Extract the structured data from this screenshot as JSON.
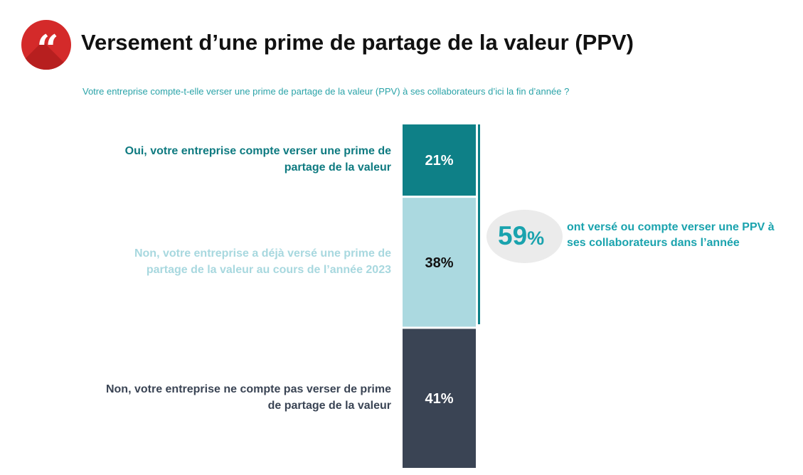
{
  "header": {
    "title": "Versement d’une prime de partage de la valeur (PPV)",
    "subtitle": "Votre entreprise compte-t-elle verser une prime de partage de la valeur (PPV) à ses collaborateurs d’ici la fin d’année ?",
    "logo_icon": "quote-icon",
    "logo_color": "#d42a2a"
  },
  "chart_data": {
    "type": "bar",
    "orientation": "stacked-vertical",
    "title": "Versement d’une prime de partage de la valeur (PPV)",
    "categories": [
      "Oui, votre entreprise compte verser une prime de partage de la valeur",
      "Non, votre entreprise a déjà versé une prime de partage de la valeur au cours de l’année 2023",
      "Non, votre entreprise ne compte pas verser de prime de partage de la valeur"
    ],
    "values": [
      21,
      38,
      41
    ],
    "value_labels": [
      "21%",
      "38%",
      "41%"
    ],
    "colors": [
      "#0e8087",
      "#abd9e0",
      "#3a4454"
    ],
    "label_colors": [
      "#0e7a80",
      "#a8d8df",
      "#3a4454"
    ],
    "value_text_colors": [
      "#ffffff",
      "#111111",
      "#ffffff"
    ],
    "unit": "%",
    "ylim": [
      0,
      100
    ],
    "annotation": {
      "value": "59",
      "unit": "%",
      "text": "ont versé ou compte verser une PPV à ses collaborateurs dans l’année",
      "color": "#1aa3ae",
      "spans_categories": [
        0,
        1
      ]
    }
  }
}
